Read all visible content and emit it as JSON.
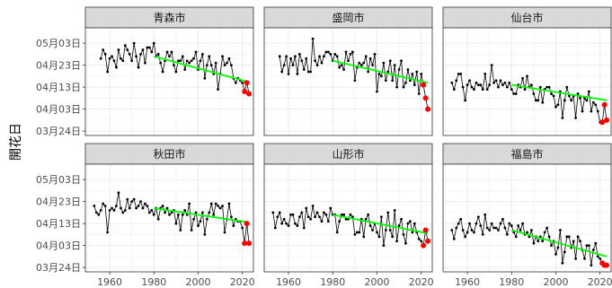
{
  "chart_data": {
    "type": "line",
    "ylabel": "開花日",
    "x_ticks": [
      1960,
      1980,
      2000,
      2020
    ],
    "xlim": [
      1949,
      2025
    ],
    "y_ticks": [
      "03月24日",
      "04月03日",
      "04月13日",
      "04月23日",
      "05月03日"
    ],
    "y_tick_day_of_year": [
      84,
      94,
      104,
      114,
      124
    ],
    "ylim_day_of_year": [
      82,
      131
    ],
    "grid": true,
    "colors": {
      "strip_bg": "#d9d9d9",
      "panel_border": "#333333",
      "grid": "#ebebeb",
      "series": "#000000",
      "trend": "#00ff00",
      "highlight": "#ff0000"
    },
    "panels": [
      {
        "city": "青森市",
        "years": [
          1956,
          1957,
          1958,
          1959,
          1960,
          1961,
          1962,
          1963,
          1964,
          1965,
          1966,
          1967,
          1968,
          1969,
          1970,
          1971,
          1972,
          1973,
          1974,
          1975,
          1976,
          1977,
          1978,
          1979,
          1980,
          1981,
          1982,
          1983,
          1984,
          1985,
          1986,
          1987,
          1988,
          1989,
          1990,
          1991,
          1992,
          1993,
          1994,
          1995,
          1996,
          1997,
          1998,
          1999,
          2000,
          2001,
          2002,
          2003,
          2004,
          2005,
          2006,
          2007,
          2008,
          2009,
          2010,
          2011,
          2012,
          2013,
          2014,
          2015,
          2016,
          2017,
          2018,
          2019,
          2020,
          2021,
          2022,
          2023
        ],
        "bloom_doy": [
          117,
          121,
          119,
          111,
          117,
          118,
          116,
          113,
          121,
          117,
          116,
          123,
          121,
          119,
          116,
          124,
          118,
          113,
          119,
          121,
          115,
          122,
          122,
          120,
          124,
          118,
          119,
          115,
          111,
          116,
          120,
          118,
          120,
          114,
          111,
          116,
          116,
          118,
          112,
          116,
          115,
          116,
          117,
          120,
          112,
          116,
          119,
          108,
          114,
          118,
          114,
          110,
          115,
          103,
          110,
          118,
          114,
          115,
          117,
          114,
          108,
          106,
          108,
          107,
          106,
          102,
          106,
          101
        ],
        "highlight_years": [
          2021,
          2022,
          2023
        ],
        "trend": {
          "x": [
            1980,
            2023
          ],
          "y": [
            118.0,
            106.3
          ]
        }
      },
      {
        "city": "盛岡市",
        "years": [
          1956,
          1957,
          1958,
          1959,
          1960,
          1961,
          1962,
          1963,
          1964,
          1965,
          1966,
          1967,
          1968,
          1969,
          1970,
          1971,
          1972,
          1973,
          1974,
          1975,
          1976,
          1977,
          1978,
          1979,
          1980,
          1981,
          1982,
          1983,
          1984,
          1985,
          1986,
          1987,
          1988,
          1989,
          1990,
          1991,
          1992,
          1993,
          1994,
          1995,
          1996,
          1997,
          1998,
          1999,
          2000,
          2001,
          2002,
          2003,
          2004,
          2005,
          2006,
          2007,
          2008,
          2009,
          2010,
          2011,
          2012,
          2013,
          2014,
          2015,
          2016,
          2017,
          2018,
          2019,
          2020,
          2021,
          2022,
          2023
        ],
        "bloom_doy": [
          118,
          111,
          114,
          118,
          110,
          117,
          114,
          118,
          110,
          119,
          116,
          112,
          117,
          111,
          111,
          126,
          116,
          114,
          118,
          115,
          118,
          120,
          120,
          119,
          116,
          119,
          118,
          113,
          114,
          112,
          120,
          116,
          119,
          120,
          107,
          113,
          115,
          114,
          115,
          118,
          111,
          117,
          114,
          119,
          102,
          110,
          109,
          115,
          107,
          111,
          116,
          107,
          114,
          104,
          112,
          116,
          104,
          106,
          112,
          107,
          110,
          105,
          111,
          101,
          110,
          105,
          99,
          94
        ],
        "highlight_years": [
          2021,
          2022,
          2023
        ],
        "trend": {
          "x": [
            1980,
            2023
          ],
          "y": [
            116.0,
            106.0
          ]
        }
      },
      {
        "city": "仙台市",
        "years": [
          1953,
          1954,
          1955,
          1956,
          1957,
          1958,
          1959,
          1960,
          1961,
          1962,
          1963,
          1964,
          1965,
          1966,
          1967,
          1968,
          1969,
          1970,
          1971,
          1972,
          1973,
          1974,
          1975,
          1976,
          1977,
          1978,
          1979,
          1980,
          1981,
          1982,
          1983,
          1984,
          1985,
          1986,
          1987,
          1988,
          1989,
          1990,
          1991,
          1992,
          1993,
          1994,
          1995,
          1996,
          1997,
          1998,
          1999,
          2000,
          2001,
          2002,
          2003,
          2004,
          2005,
          2006,
          2007,
          2008,
          2009,
          2010,
          2011,
          2012,
          2013,
          2014,
          2015,
          2016,
          2017,
          2018,
          2019,
          2020,
          2021,
          2022,
          2023
        ],
        "bloom_doy": [
          106,
          103,
          107,
          110,
          110,
          104,
          98,
          105,
          107,
          104,
          103,
          106,
          105,
          105,
          103,
          110,
          103,
          105,
          114,
          106,
          107,
          104,
          107,
          105,
          106,
          104,
          106,
          103,
          101,
          101,
          105,
          104,
          108,
          103,
          109,
          104,
          105,
          101,
          98,
          98,
          104,
          97,
          103,
          104,
          104,
          101,
          100,
          95,
          96,
          102,
          90,
          98,
          104,
          100,
          98,
          100,
          90,
          101,
          99,
          93,
          99,
          98,
          102,
          93,
          97,
          96,
          93,
          88,
          88,
          96,
          89
        ],
        "highlight_years": [
          2021,
          2022,
          2023
        ],
        "trend": {
          "x": [
            1980,
            2023
          ],
          "y": [
            105.0,
            98.0
          ]
        }
      },
      {
        "city": "秋田市",
        "years": [
          1953,
          1954,
          1955,
          1956,
          1957,
          1958,
          1959,
          1960,
          1961,
          1962,
          1963,
          1964,
          1965,
          1966,
          1967,
          1968,
          1969,
          1970,
          1971,
          1972,
          1973,
          1974,
          1975,
          1976,
          1977,
          1978,
          1979,
          1980,
          1981,
          1982,
          1983,
          1984,
          1985,
          1986,
          1987,
          1988,
          1989,
          1990,
          1991,
          1992,
          1993,
          1994,
          1995,
          1996,
          1997,
          1998,
          1999,
          2000,
          2001,
          2002,
          2003,
          2004,
          2005,
          2006,
          2007,
          2008,
          2009,
          2010,
          2011,
          2012,
          2013,
          2014,
          2015,
          2016,
          2017,
          2018,
          2019,
          2020,
          2021,
          2022,
          2023
        ],
        "bloom_doy": [
          112,
          109,
          108,
          110,
          113,
          112,
          100,
          110,
          111,
          110,
          112,
          118,
          111,
          109,
          110,
          115,
          111,
          114,
          115,
          111,
          112,
          114,
          111,
          113,
          112,
          109,
          110,
          108,
          111,
          106,
          111,
          112,
          109,
          111,
          108,
          109,
          110,
          104,
          108,
          101,
          108,
          110,
          108,
          113,
          101,
          106,
          109,
          103,
          105,
          109,
          99,
          106,
          109,
          113,
          108,
          113,
          112,
          111,
          112,
          100,
          106,
          113,
          107,
          103,
          106,
          105,
          105,
          102,
          95,
          104,
          95
        ],
        "highlight_years": [
          2021,
          2022,
          2023
        ],
        "trend": {
          "x": [
            1980,
            2023
          ],
          "y": [
            111.0,
            104.5
          ]
        }
      },
      {
        "city": "山形市",
        "years": [
          1953,
          1954,
          1955,
          1956,
          1957,
          1958,
          1959,
          1960,
          1961,
          1962,
          1963,
          1964,
          1965,
          1966,
          1967,
          1968,
          1969,
          1970,
          1971,
          1972,
          1973,
          1974,
          1975,
          1976,
          1977,
          1978,
          1979,
          1980,
          1981,
          1982,
          1983,
          1984,
          1985,
          1986,
          1987,
          1988,
          1989,
          1990,
          1991,
          1992,
          1993,
          1994,
          1995,
          1996,
          1997,
          1998,
          1999,
          2000,
          2001,
          2002,
          2003,
          2004,
          2005,
          2006,
          2007,
          2008,
          2009,
          2010,
          2011,
          2012,
          2013,
          2014,
          2015,
          2016,
          2017,
          2018,
          2019,
          2020,
          2021,
          2022,
          2023
        ],
        "bloom_doy": [
          109,
          102,
          107,
          109,
          104,
          106,
          104,
          103,
          108,
          108,
          104,
          103,
          107,
          109,
          102,
          111,
          107,
          106,
          112,
          107,
          109,
          107,
          105,
          109,
          108,
          105,
          111,
          108,
          108,
          100,
          105,
          108,
          108,
          106,
          106,
          108,
          107,
          99,
          100,
          100,
          106,
          98,
          106,
          108,
          103,
          101,
          104,
          100,
          98,
          107,
          94,
          101,
          109,
          101,
          98,
          110,
          96,
          103,
          106,
          99,
          95,
          104,
          105,
          100,
          104,
          100,
          97,
          96,
          94,
          101,
          96
        ],
        "highlight_years": [
          2021,
          2022,
          2023
        ],
        "trend": {
          "x": [
            1980,
            2023
          ],
          "y": [
            108.0,
            99.5
          ]
        }
      },
      {
        "city": "福島市",
        "years": [
          1953,
          1954,
          1955,
          1956,
          1957,
          1958,
          1959,
          1960,
          1961,
          1962,
          1963,
          1964,
          1965,
          1966,
          1967,
          1968,
          1969,
          1970,
          1971,
          1972,
          1973,
          1974,
          1975,
          1976,
          1977,
          1978,
          1979,
          1980,
          1981,
          1982,
          1983,
          1984,
          1985,
          1986,
          1987,
          1988,
          1989,
          1990,
          1991,
          1992,
          1993,
          1994,
          1995,
          1996,
          1997,
          1998,
          1999,
          2000,
          2001,
          2002,
          2003,
          2004,
          2005,
          2006,
          2007,
          2008,
          2009,
          2010,
          2011,
          2012,
          2013,
          2014,
          2015,
          2016,
          2017,
          2018,
          2019,
          2020,
          2021,
          2022,
          2023
        ],
        "bloom_doy": [
          101,
          97,
          102,
          104,
          106,
          101,
          98,
          100,
          104,
          101,
          100,
          104,
          107,
          103,
          99,
          108,
          102,
          101,
          104,
          102,
          102,
          101,
          104,
          106,
          102,
          99,
          104,
          103,
          100,
          98,
          103,
          101,
          104,
          99,
          100,
          98,
          101,
          95,
          98,
          96,
          98,
          96,
          100,
          102,
          98,
          94,
          96,
          90,
          93,
          101,
          86,
          91,
          98,
          98,
          93,
          96,
          88,
          98,
          96,
          92,
          88,
          94,
          94,
          85,
          92,
          95,
          89,
          88,
          86,
          85,
          85
        ],
        "highlight_years": [
          2021,
          2022,
          2023
        ],
        "trend": {
          "x": [
            1980,
            2023
          ],
          "y": [
            101.0,
            89.0
          ]
        }
      }
    ]
  }
}
